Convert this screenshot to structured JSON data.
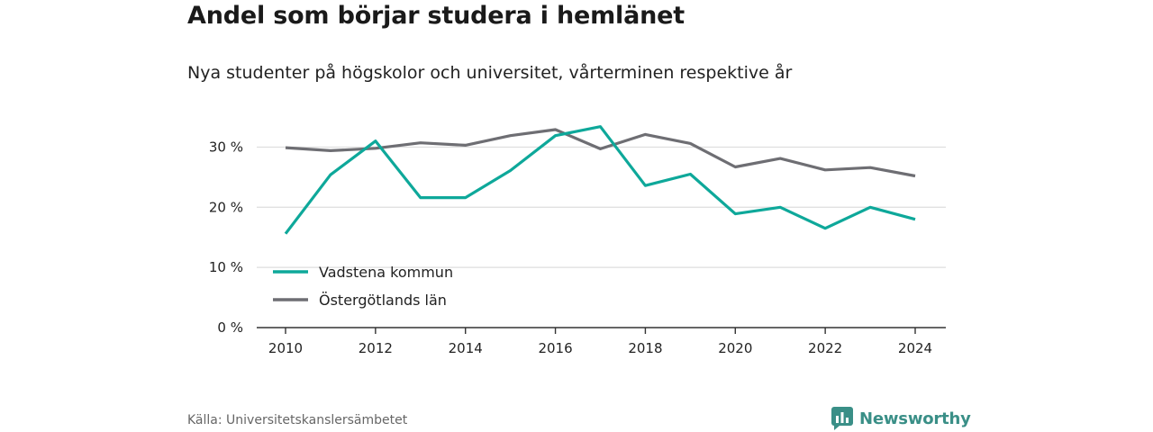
{
  "title": "Andel som börjar studera i hemlänet",
  "subtitle": "Nya studenter på högskolor och universitet, vårterminen respektive år",
  "source": "Källa: Universitetskanslersämbetet",
  "brand": {
    "name": "Newsworthy",
    "icon": "newsworthy-logo-icon",
    "color": "#3a8f87"
  },
  "chart_data": {
    "type": "line",
    "x": [
      2010,
      2011,
      2012,
      2013,
      2014,
      2015,
      2016,
      2017,
      2018,
      2019,
      2020,
      2021,
      2022,
      2023,
      2024
    ],
    "series": [
      {
        "name": "Vadstena kommun",
        "color": "#0ea89a",
        "values": [
          15.6,
          25.4,
          31.0,
          21.6,
          21.6,
          26.1,
          31.9,
          33.4,
          23.6,
          25.5,
          18.9,
          20.0,
          16.5,
          20.0,
          18.0
        ]
      },
      {
        "name": "Östergötlands län",
        "color": "#6e6e73",
        "values": [
          29.9,
          29.4,
          29.8,
          30.7,
          30.3,
          31.9,
          32.9,
          29.7,
          32.1,
          30.6,
          26.7,
          28.1,
          26.2,
          26.6,
          25.2
        ]
      }
    ],
    "x_ticks": [
      "2010",
      "2012",
      "2014",
      "2016",
      "2018",
      "2020",
      "2022",
      "2024"
    ],
    "y_ticks": [
      "0 %",
      "10 %",
      "20 %",
      "30 %"
    ],
    "ylim": [
      0,
      35
    ],
    "grid": true,
    "legend_position": "bottom-left"
  }
}
